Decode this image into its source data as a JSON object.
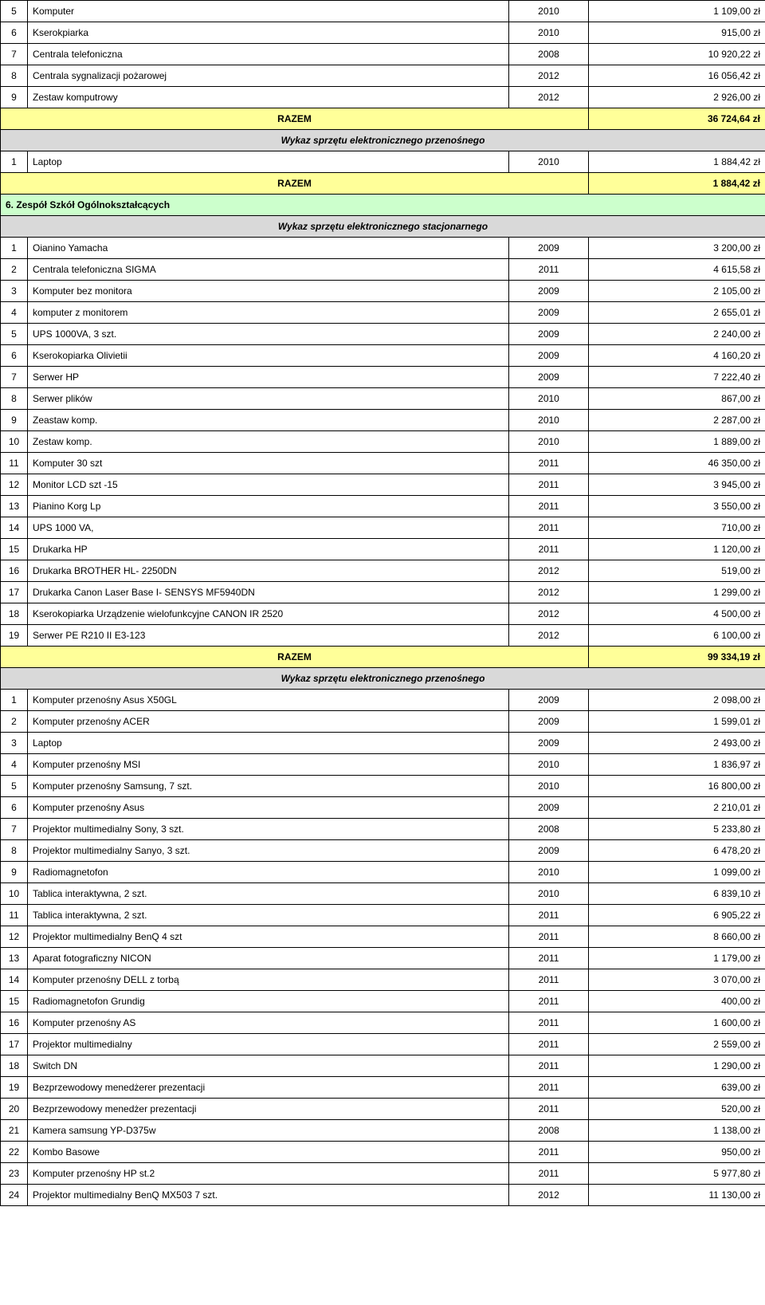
{
  "colors": {
    "razem_bg": "#ffff99",
    "section_bg": "#d9d9d9",
    "school_bg": "#ccffcc"
  },
  "labels": {
    "razem": "RAZEM",
    "portable_header": "Wykaz sprzętu elektronicznego przenośnego",
    "stationary_header": "Wykaz sprzętu elektronicznego stacjonarnego",
    "school6": "6. Zespół Szkół Ogólnokształcących"
  },
  "block_a": [
    {
      "num": "5",
      "name": "Komputer",
      "year": "2010",
      "value": "1 109,00 zł"
    },
    {
      "num": "6",
      "name": "Kserokpiarka",
      "year": "2010",
      "value": "915,00 zł"
    },
    {
      "num": "7",
      "name": "Centrala telefoniczna",
      "year": "2008",
      "value": "10 920,22 zł"
    },
    {
      "num": "8",
      "name": "Centrala sygnalizacji pożarowej",
      "year": "2012",
      "value": "16 056,42 zł"
    },
    {
      "num": "9",
      "name": "Zestaw komputrowy",
      "year": "2012",
      "value": "2 926,00 zł"
    }
  ],
  "block_a_total": "36 724,64 zł",
  "block_b": [
    {
      "num": "1",
      "name": "Laptop",
      "year": "2010",
      "value": "1 884,42 zł"
    }
  ],
  "block_b_total": "1 884,42 zł",
  "block_c": [
    {
      "num": "1",
      "name": "Oianino Yamacha",
      "year": "2009",
      "value": "3 200,00 zł"
    },
    {
      "num": "2",
      "name": "Centrala telefoniczna SIGMA",
      "year": "2011",
      "value": "4 615,58 zł"
    },
    {
      "num": "3",
      "name": "Komputer bez monitora",
      "year": "2009",
      "value": "2 105,00 zł"
    },
    {
      "num": "4",
      "name": "komputer z monitorem",
      "year": "2009",
      "value": "2 655,01 zł"
    },
    {
      "num": "5",
      "name": "UPS 1000VA, 3 szt.",
      "year": "2009",
      "value": "2 240,00 zł"
    },
    {
      "num": "6",
      "name": "Kserokopiarka Olivietii",
      "year": "2009",
      "value": "4 160,20 zł"
    },
    {
      "num": "7",
      "name": "Serwer HP",
      "year": "2009",
      "value": "7 222,40 zł"
    },
    {
      "num": "8",
      "name": "Serwer plików",
      "year": "2010",
      "value": "867,00 zł"
    },
    {
      "num": "9",
      "name": "Zeastaw komp.",
      "year": "2010",
      "value": "2 287,00 zł"
    },
    {
      "num": "10",
      "name": "Zestaw komp.",
      "year": "2010",
      "value": "1 889,00 zł"
    },
    {
      "num": "11",
      "name": "Komputer 30 szt",
      "year": "2011",
      "value": "46 350,00 zł"
    },
    {
      "num": "12",
      "name": "Monitor LCD  szt -15",
      "year": "2011",
      "value": "3 945,00 zł"
    },
    {
      "num": "13",
      "name": "Pianino Korg Lp",
      "year": "2011",
      "value": "3 550,00 zł"
    },
    {
      "num": "14",
      "name": "UPS 1000 VA,",
      "year": "2011",
      "value": "710,00 zł"
    },
    {
      "num": "15",
      "name": "Drukarka HP",
      "year": "2011",
      "value": "1 120,00 zł"
    },
    {
      "num": "16",
      "name": "Drukarka BROTHER HL- 2250DN",
      "year": "2012",
      "value": "519,00 zł"
    },
    {
      "num": "17",
      "name": "Drukarka Canon Laser Base I- SENSYS MF5940DN",
      "year": "2012",
      "value": "1 299,00 zł"
    },
    {
      "num": "18",
      "name": "Kserokopiarka Urządzenie wielofunkcyjne CANON IR 2520",
      "year": "2012",
      "value": "4 500,00 zł"
    },
    {
      "num": "19",
      "name": "Serwer PE R210 II E3-123",
      "year": "2012",
      "value": "6 100,00 zł"
    }
  ],
  "block_c_total": "99 334,19 zł",
  "block_d": [
    {
      "num": "1",
      "name": "Komputer przenośny Asus X50GL",
      "year": "2009",
      "value": "2 098,00 zł"
    },
    {
      "num": "2",
      "name": "Komputer przenośny ACER",
      "year": "2009",
      "value": "1 599,01 zł"
    },
    {
      "num": "3",
      "name": "Laptop",
      "year": "2009",
      "value": "2 493,00 zł"
    },
    {
      "num": "4",
      "name": "Komputer przenośny MSI",
      "year": "2010",
      "value": "1 836,97 zł"
    },
    {
      "num": "5",
      "name": "Komputer przenośny Samsung, 7 szt.",
      "year": "2010",
      "value": "16 800,00 zł"
    },
    {
      "num": "6",
      "name": "Komputer przenośny Asus",
      "year": "2009",
      "value": "2 210,01 zł"
    },
    {
      "num": "7",
      "name": "Projektor multimedialny Sony, 3 szt.",
      "year": "2008",
      "value": "5 233,80 zł"
    },
    {
      "num": "8",
      "name": "Projektor multimedialny Sanyo, 3 szt.",
      "year": "2009",
      "value": "6 478,20 zł"
    },
    {
      "num": "9",
      "name": "Radiomagnetofon",
      "year": "2010",
      "value": "1 099,00 zł"
    },
    {
      "num": "10",
      "name": "Tablica interaktywna, 2 szt.",
      "year": "2010",
      "value": "6 839,10 zł"
    },
    {
      "num": "11",
      "name": "Tablica interaktywna, 2 szt.",
      "year": "2011",
      "value": "6 905,22 zł"
    },
    {
      "num": "12",
      "name": "Projektor multimedialny BenQ 4 szt",
      "year": "2011",
      "value": "8 660,00 zł"
    },
    {
      "num": "13",
      "name": "Aparat fotograficzny NICON",
      "year": "2011",
      "value": "1 179,00 zł"
    },
    {
      "num": "14",
      "name": "Komputer przenośny DELL z torbą",
      "year": "2011",
      "value": "3 070,00 zł"
    },
    {
      "num": "15",
      "name": "Radiomagnetofon Grundig",
      "year": "2011",
      "value": "400,00 zł"
    },
    {
      "num": "16",
      "name": "Komputer przenośny AS",
      "year": "2011",
      "value": "1 600,00 zł"
    },
    {
      "num": "17",
      "name": "Projektor multimedialny",
      "year": "2011",
      "value": "2 559,00 zł"
    },
    {
      "num": "18",
      "name": "Switch DN",
      "year": "2011",
      "value": "1 290,00 zł"
    },
    {
      "num": "19",
      "name": "Bezprzewodowy  menedżerer prezentacji",
      "year": "2011",
      "value": "639,00 zł"
    },
    {
      "num": "20",
      "name": "Bezprzewodowy  menedżer prezentacji",
      "year": "2011",
      "value": "520,00 zł"
    },
    {
      "num": "21",
      "name": "Kamera samsung YP-D375w",
      "year": "2008",
      "value": "1 138,00 zł"
    },
    {
      "num": "22",
      "name": "Kombo Basowe",
      "year": "2011",
      "value": "950,00 zł"
    },
    {
      "num": "23",
      "name": "Komputer przenośny HP st.2",
      "year": "2011",
      "value": "5 977,80 zł"
    },
    {
      "num": "24",
      "name": "Projektor multimedialny BenQ MX503  7 szt.",
      "year": "2012",
      "value": "11 130,00 zł"
    }
  ]
}
